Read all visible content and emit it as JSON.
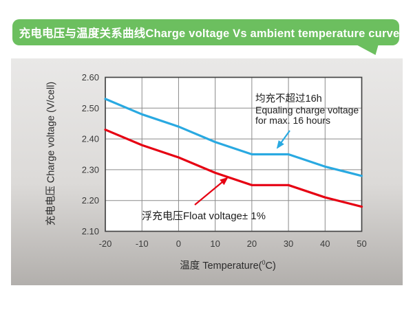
{
  "banner": {
    "title": "充电电压与温度关系曲线Charge voltage Vs ambient temperature curve",
    "bg_color": "#6cbf5f",
    "text_color": "#ffffff"
  },
  "chart_data": {
    "type": "line",
    "title": "充电电压与温度关系曲线Charge voltage Vs ambient temperature curve",
    "x": [
      -20,
      -10,
      0,
      10,
      20,
      30,
      40,
      50
    ],
    "x_tick_labels": [
      "-20",
      "-10",
      "0",
      "10",
      "20",
      "30",
      "40",
      "50"
    ],
    "y_ticks": [
      2.1,
      2.2,
      2.3,
      2.4,
      2.5,
      2.6
    ],
    "y_tick_labels": [
      "2.10",
      "2.20",
      "2.30",
      "2.40",
      "2.50",
      "2.60"
    ],
    "xlim": [
      -20,
      50
    ],
    "ylim": [
      2.1,
      2.6
    ],
    "grid": true,
    "legend_position": "none",
    "xlabel": {
      "pre": "温度 Temperature(",
      "sup": "0",
      "post": "C)"
    },
    "ylabel": "充电电压 Charge voltage (V/cell)",
    "series": [
      {
        "name": "equalize-charge-voltage",
        "label": "均充不超过16h Equaling charge voltage for max. 16 hours",
        "color": "#29a9e1",
        "values": [
          2.53,
          2.48,
          2.44,
          2.39,
          2.35,
          2.35,
          2.31,
          2.28
        ]
      },
      {
        "name": "float-charge-voltage",
        "label": "浮充电压Float voltage± 1%",
        "color": "#e60012",
        "values": [
          2.43,
          2.38,
          2.34,
          2.29,
          2.25,
          2.25,
          2.21,
          2.18
        ]
      }
    ]
  },
  "annotations": {
    "equalize": {
      "line1": "均充不超过16h",
      "line2": "Equaling charge voltage",
      "line3": "for max. 16 hours"
    },
    "float": {
      "text": "浮充电压Float voltage± 1%"
    }
  },
  "colors": {
    "panel_gradient_top": "#e9e8e7",
    "panel_gradient_bottom": "#b2afac",
    "plot_background": "#ffffff",
    "grid": "#8a8a8a",
    "axis_border": "#454545",
    "tick_text": "#3a3a3a",
    "annotation_text": "#1c1c1c"
  }
}
